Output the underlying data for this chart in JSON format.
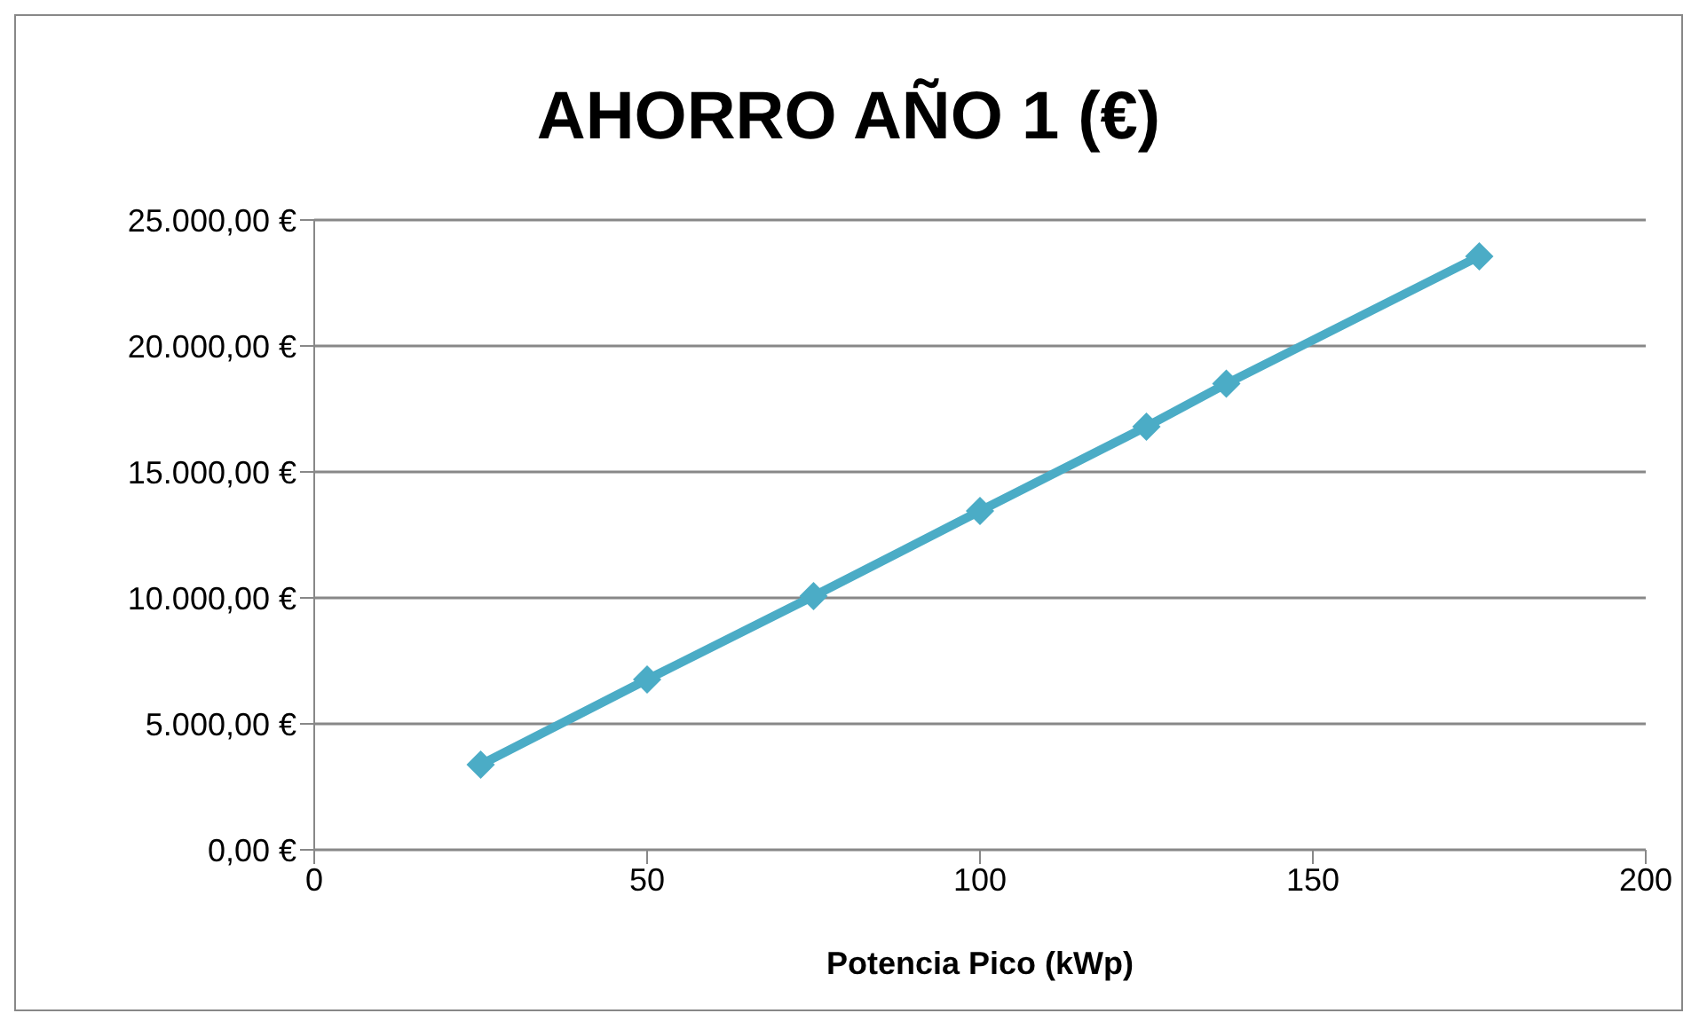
{
  "chart_data": {
    "type": "line",
    "title": "AHORRO AÑO 1 (€)",
    "xlabel": "Potencia Pico (kWp)",
    "x": [
      25,
      50,
      75,
      100,
      125,
      137,
      175
    ],
    "series": [
      {
        "color": "#4bacc6",
        "values": [
          3380,
          6760,
          10070,
          13450,
          16800,
          18500,
          23560
        ]
      }
    ],
    "xlim": [
      0,
      200
    ],
    "xticks": [
      0,
      50,
      100,
      150,
      200
    ],
    "ylim": [
      0,
      25000
    ],
    "yticks": [
      {
        "value": 0,
        "label": "0,00 €"
      },
      {
        "value": 5000,
        "label": "5.000,00 €"
      },
      {
        "value": 10000,
        "label": "10.000,00 €"
      },
      {
        "value": 15000,
        "label": "15.000,00 €"
      },
      {
        "value": 20000,
        "label": "20.000,00 €"
      },
      {
        "value": 25000,
        "label": "25.000,00 €"
      }
    ],
    "grid": "y",
    "marker": "diamond",
    "line_style": "solid",
    "legend": false
  }
}
